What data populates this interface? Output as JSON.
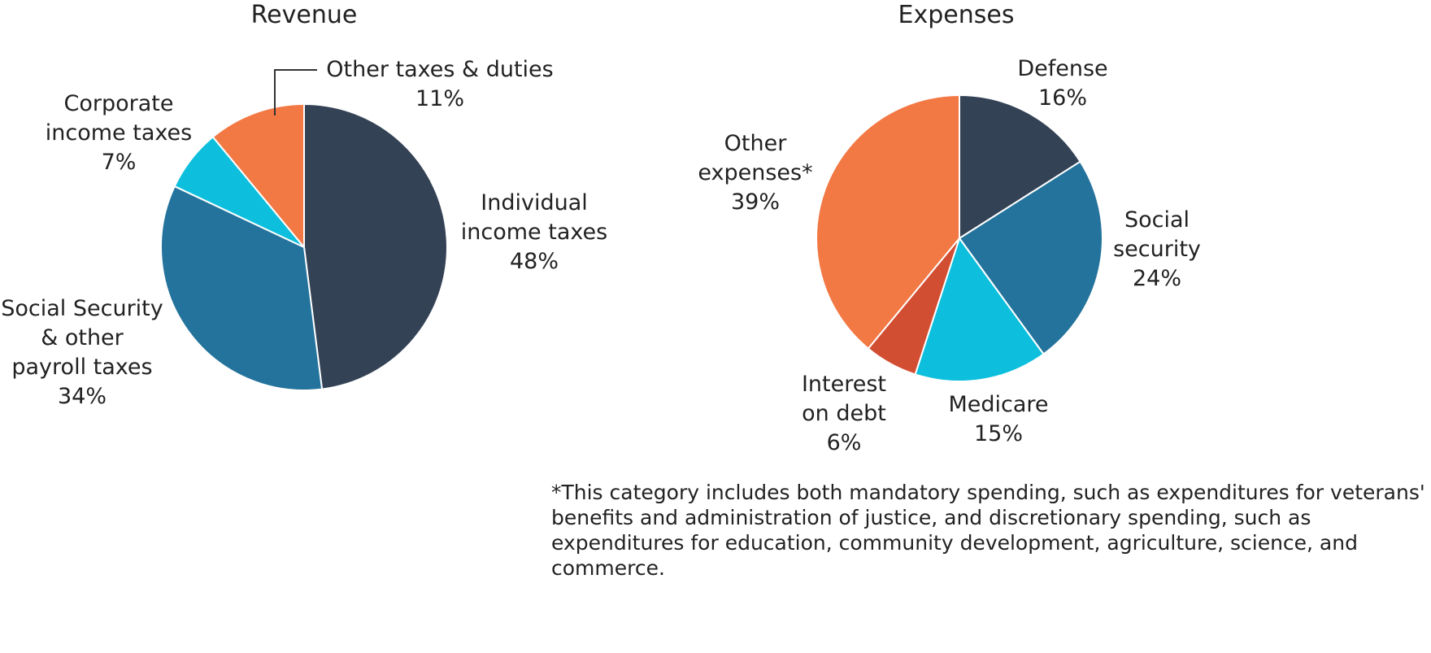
{
  "chart_data": [
    {
      "type": "pie",
      "title": "Revenue",
      "slices": [
        {
          "label": [
            "Individual",
            "income taxes"
          ],
          "percent_label": "48%",
          "value": 48,
          "color": "#344256"
        },
        {
          "label": [
            "Social Security",
            "& other",
            "payroll taxes"
          ],
          "percent_label": "34%",
          "value": 34,
          "color": "#24739c"
        },
        {
          "label": [
            "Corporate",
            "income taxes"
          ],
          "percent_label": "7%",
          "value": 7,
          "color": "#0dbfdc"
        },
        {
          "label": [
            "Other taxes & duties"
          ],
          "percent_label": "11%",
          "value": 11,
          "color": "#f27844"
        }
      ]
    },
    {
      "type": "pie",
      "title": "Expenses",
      "slices": [
        {
          "label": [
            "Defense"
          ],
          "percent_label": "16%",
          "value": 16,
          "color": "#344256"
        },
        {
          "label": [
            "Social",
            "security"
          ],
          "percent_label": "24%",
          "value": 24,
          "color": "#24739c"
        },
        {
          "label": [
            "Medicare"
          ],
          "percent_label": "15%",
          "value": 15,
          "color": "#0dbfdc"
        },
        {
          "label": [
            "Interest",
            "on debt"
          ],
          "percent_label": "6%",
          "value": 6,
          "color": "#d24e32"
        },
        {
          "label": [
            "Other",
            "expenses*"
          ],
          "percent_label": "39%",
          "value": 39,
          "color": "#f27844"
        }
      ]
    }
  ],
  "footnote": "*This category includes both mandatory spending, such as expenditures for veterans' benefits and administration of justice, and discretionary spending, such as expenditures for education, community development, agriculture, science, and commerce."
}
